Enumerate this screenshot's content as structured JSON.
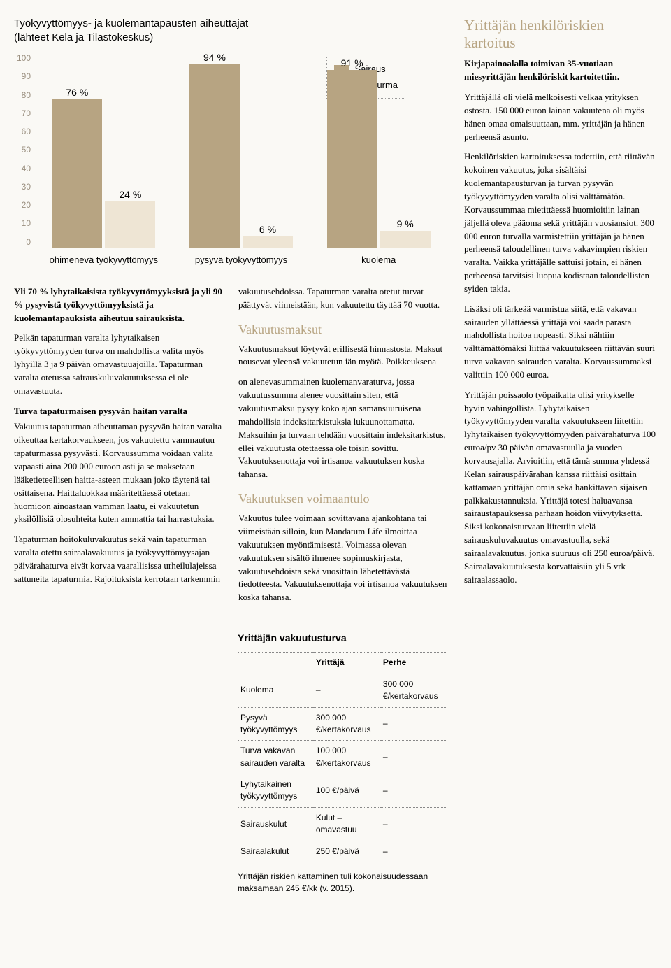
{
  "chart": {
    "title_line1": "Työkyvyttömyys- ja kuolemantapausten aiheuttajat",
    "title_line2": "(lähteet Kela ja Tilastokeskus)",
    "type": "bar",
    "legend": [
      {
        "label": "Sairaus",
        "color": "#b7a482"
      },
      {
        "label": "Tapaturma",
        "color": "#eee5d4"
      }
    ],
    "y_ticks": [
      "0",
      "10",
      "20",
      "30",
      "40",
      "50",
      "60",
      "70",
      "80",
      "90",
      "100"
    ],
    "ylim": [
      0,
      100
    ],
    "bar_color_primary": "#b7a482",
    "bar_color_secondary": "#eee5d4",
    "label_color": "#000",
    "ytick_color": "#9a8f7f",
    "background": "#faf9f5",
    "groups": [
      {
        "x": "ohimenevä työkyvyttömyys",
        "primary": 76,
        "primary_label": "76 %",
        "secondary": 24,
        "secondary_label": "24 %"
      },
      {
        "x": "pysyvä työkyvyttömyys",
        "primary": 94,
        "primary_label": "94 %",
        "secondary": 6,
        "secondary_label": "6 %"
      },
      {
        "x": "kuolema",
        "primary": 91,
        "primary_label": "91 %",
        "secondary": 9,
        "secondary_label": "9 %"
      }
    ]
  },
  "body": {
    "p1": "Yli 70 % lyhytaikaisista työkyvyttömyyksistä ja yli 90 % pysyvistä työkyvyttömyyksistä ja kuolemantapauksista aiheutuu sairauksista.",
    "p2": "Pelkän tapaturman varalta lyhytaikaisen työkyvyttömyyden turva on mahdollista valita myös lyhyillä 3 ja 9 päivän omavastuuajoilla. Tapaturman varalta otetussa sairauskuluvakuutuksessa ei ole omavastuuta.",
    "sub1": "Turva tapaturmaisen pysyvän haitan varalta",
    "p3": "Vakuutus tapaturman aiheuttaman pysyvän haitan varalta oikeuttaa kertakorvaukseen, jos vakuutettu vammautuu tapaturmassa pysyvästi. Korvaussumma voidaan valita vapaasti aina 200 000 euroon asti ja se maksetaan lääketieteellisen haitta-asteen mukaan joko täytenä tai osittaisena. Haittaluokkaa määritettäessä otetaan huomioon ainoastaan vamman laatu, ei vakuutetun yksilöllisiä olosuhteita kuten ammattia tai harrastuksia.",
    "p4": "Tapaturman hoitokuluvakuutus sekä vain tapaturman varalta otettu sairaalavakuutus ja työkyvyttömyysajan päivärahaturva eivät korvaa vaarallisissa urheilulajeissa sattuneita tapaturmia. Rajoituksista kerrotaan tarkemmin vakuutusehdoissa. Tapaturman varalta otetut turvat päättyvät viimeistään, kun vakuutettu täyttää 70 vuotta.",
    "h_vm": "Vakuutusmaksut",
    "p5": "Vakuutusmaksut löytyvät erillisestä hinnastosta. Maksut nousevat yleensä vakuutetun iän myötä. Poikkeuksena",
    "p6": "on alenevasummainen kuolemanvaraturva, jossa vakuutussumma alenee vuosittain siten, että vakuutusmaksu pysyy koko ajan samansuuruisena mahdollisia indeksitarkistuksia lukuunottamatta. Maksuihin ja turvaan tehdään vuosittain indeksitarkistus, ellei vakuutusta otettaessa ole toisin sovittu. Vakuutuksenottaja voi irtisanoa vakuutuksen koska tahansa.",
    "h_vt": "Vakuutuksen voimaantulo",
    "p7": "Vakuutus tulee voimaan sovittavana ajankohtana tai viimeistään silloin, kun Mandatum Life ilmoittaa vakuutuksen myöntämisestä. Voimassa olevan vakuutuksen sisältö ilmenee sopimuskirjasta, vakuutusehdoista sekä vuosittain lähetettävästä tiedotteesta. Vakuutuksenottaja voi irtisanoa vakuutuksen koska tahansa."
  },
  "table": {
    "title": "Yrittäjän vakuutusturva",
    "headers": [
      "",
      "Yrittäjä",
      "Perhe"
    ],
    "rows": [
      [
        "Kuolema",
        "–",
        "300 000 €/kertakorvaus"
      ],
      [
        "Pysyvä työkyvyttömyys",
        "300 000 €/kertakorvaus",
        "–"
      ],
      [
        "Turva vakavan sairauden varalta",
        "100 000 €/kertakorvaus",
        "–"
      ],
      [
        "Lyhytaikainen työkyvyttömyys",
        "100 €/päivä",
        "–"
      ],
      [
        "Sairauskulut",
        "Kulut – omavastuu",
        "–"
      ],
      [
        "Sairaalakulut",
        "250 €/päivä",
        "–"
      ]
    ],
    "footnote": "Yrittäjän riskien kattaminen tuli kokonaisuudessaan maksamaan 245 €/kk (v. 2015)."
  },
  "sidebar": {
    "title": "Yrittäjän henkilöriskien kartoitus",
    "intro": "Kirjapainoalalla toimivan 35-vuotiaan miesyrittäjän henkilöriskit kartoitettiin.",
    "p1": "Yrittäjällä oli vielä melkoisesti velkaa yrityksen ostosta. 150 000 euron lainan vakuutena oli myös hänen omaa omaisuuttaan, mm. yrittäjän ja hänen perheensä asunto.",
    "p2": "Henkilöriskien kartoituksessa todettiin, että riittävän kokoinen vakuutus, joka sisältäisi kuolemantapausturvan ja turvan pysyvän työkyvyttömyyden varalta olisi välttämätön. Korvaussummaa mietittäessä huomioitiin lainan jäljellä oleva pääoma sekä yrittäjän vuosiansiot. 300 000 euron turvalla varmistettiin yrittäjän ja hänen perheensä taloudellinen turva vakavimpien riskien varalta. Vaikka yrittäjälle sattuisi jotain, ei hänen perheensä tarvitsisi luopua kodistaan taloudellisten syiden takia.",
    "p3": "Lisäksi oli tärkeää varmistua siitä, että vakavan sairauden yllättäessä yrittäjä voi saada parasta mahdollista hoitoa nopeasti. Siksi nähtiin välttämättömäksi liittää vakuutukseen riittävän suuri turva vakavan sairauden varalta. Korvaussummaksi valittiin 100 000 euroa.",
    "p4": "Yrittäjän poissaolo työpaikalta olisi yritykselle hyvin vahingollista. Lyhytaikaisen työkyvyttömyyden varalta vakuutukseen liitettiin lyhytaikaisen työkyvyttömyyden päivärahaturva 100 euroa/pv 30 päivän omavastuulla ja vuoden korvausajalla. Arvioitiin, että tämä summa yhdessä Kelan sairauspäivärahan kanssa riittäisi osittain kattamaan yrittäjän omia sekä hankittavan sijaisen palkkakustannuksia. Yrittäjä totesi haluavansa sairaustapauksessa parhaan hoidon viivytyksettä. Siksi kokonaisturvaan liitettiin vielä sairauskuluvakuutus omavastuulla, sekä sairaalavakuutus, jonka suuruus oli 250 euroa/päivä. Sairaalavakuutuksesta korvattaisiin yli 5 vrk sairaalassaolo."
  }
}
